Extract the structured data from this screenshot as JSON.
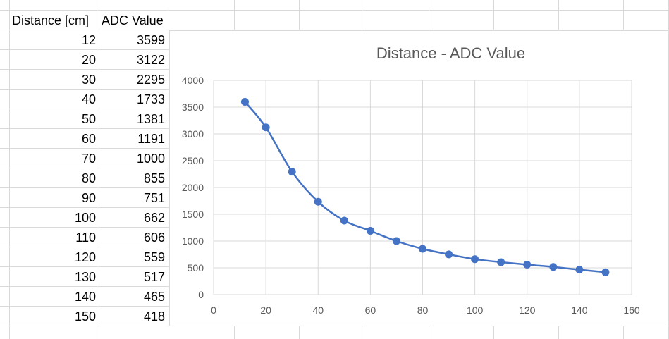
{
  "table": {
    "headers": [
      "Distance [cm]",
      "ADC Value"
    ],
    "rows": [
      [
        "12",
        "3599"
      ],
      [
        "20",
        "3122"
      ],
      [
        "30",
        "2295"
      ],
      [
        "40",
        "1733"
      ],
      [
        "50",
        "1381"
      ],
      [
        "60",
        "1191"
      ],
      [
        "70",
        "1000"
      ],
      [
        "80",
        "855"
      ],
      [
        "90",
        "751"
      ],
      [
        "100",
        "662"
      ],
      [
        "110",
        "606"
      ],
      [
        "120",
        "559"
      ],
      [
        "130",
        "517"
      ],
      [
        "140",
        "465"
      ],
      [
        "150",
        "418"
      ]
    ]
  },
  "chart_data": {
    "type": "scatter",
    "title": "Distance - ADC Value",
    "xlabel": "",
    "ylabel": "",
    "xlim": [
      0,
      160
    ],
    "ylim": [
      0,
      4000
    ],
    "xticks": [
      0,
      20,
      40,
      60,
      80,
      100,
      120,
      140,
      160
    ],
    "yticks": [
      0,
      500,
      1000,
      1500,
      2000,
      2500,
      3000,
      3500,
      4000
    ],
    "grid": true,
    "smooth_line": true,
    "series_color": "#4472c4",
    "series": [
      {
        "x": [
          12,
          20,
          30,
          40,
          50,
          60,
          70,
          80,
          90,
          100,
          110,
          120,
          130,
          140,
          150
        ],
        "y": [
          3599,
          3122,
          2295,
          1733,
          1381,
          1191,
          1000,
          855,
          751,
          662,
          606,
          559,
          517,
          465,
          418
        ]
      }
    ]
  }
}
